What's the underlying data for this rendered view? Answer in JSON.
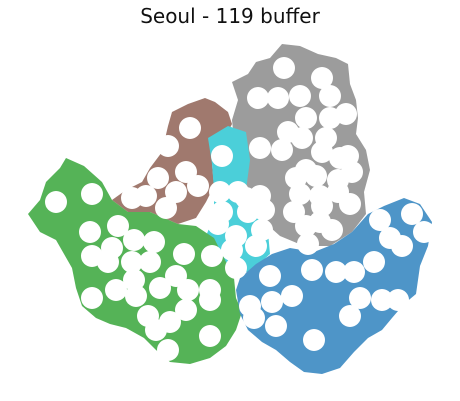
{
  "map": {
    "title": "Seoul - 119 buffer"
  },
  "legend": {
    "regions": [
      {
        "id": "northwest",
        "color": "#a0796e"
      },
      {
        "id": "northeast",
        "color": "#9c9c9c"
      },
      {
        "id": "center",
        "color": "#4bcfd9"
      },
      {
        "id": "southwest",
        "color": "#55b357"
      },
      {
        "id": "southeast",
        "color": "#4e95c8"
      }
    ],
    "buffer_color": "#ffffff"
  }
}
